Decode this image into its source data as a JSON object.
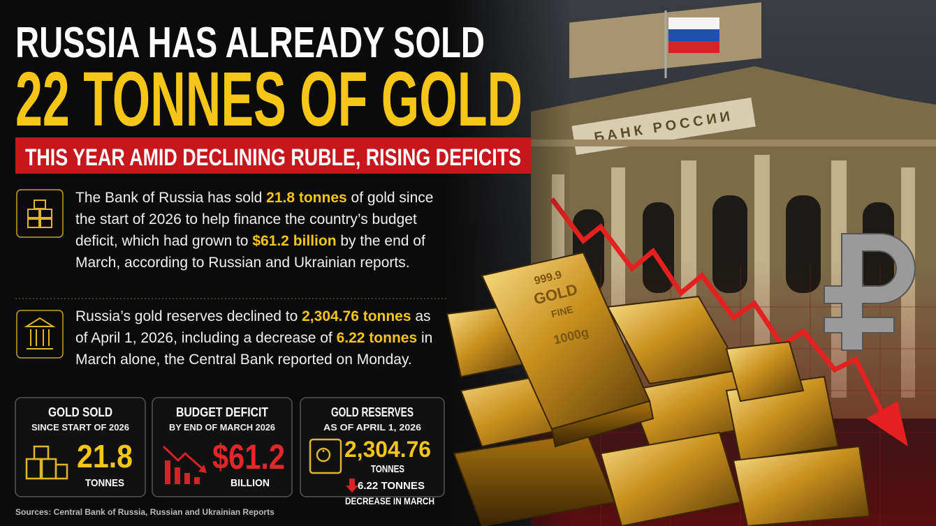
{
  "header": {
    "line1": "RUSSIA HAS ALREADY SOLD",
    "line2": "22 TONNES OF GOLD",
    "banner": "THIS YEAR AMID DECLINING RUBLE, RISING DEFICITS"
  },
  "paragraphs": [
    [
      "The Bank of Russia has sold ",
      "21.8 tonnes",
      " of gold since the start of 2026 to help finance the country’s budget deficit, which had grown to ",
      "$61.2 billion",
      " by the end of March, according to Russian and Ukrainian reports."
    ],
    [
      "Russia’s gold reserves declined to ",
      "2,304.76 tonnes",
      " as of April 1, 2026, including a decrease of ",
      "6.22 tonnes",
      " in March alone, the Central Bank reported on Monday."
    ]
  ],
  "cards": [
    {
      "title": "GOLD SOLD",
      "subtitle": "SINCE START OF 2026",
      "value": "21.8",
      "unit": "TONNES"
    },
    {
      "title": "BUDGET DEFICIT",
      "subtitle": "BY END OF MARCH 2026",
      "value": "$61.2",
      "unit": "BILLION"
    },
    {
      "title": "GOLD RESERVES",
      "subtitle": "AS OF APRIL 1, 2026",
      "value": "2,304.76",
      "unit": "TONNES",
      "change": "6.22 TONNES",
      "change_note": "DECREASE IN MARCH"
    }
  ],
  "image": {
    "bank_sign": "БАНК РОССИИ",
    "bar_engraving": [
      "999.9",
      "GOLD",
      "FINE",
      "1000g"
    ]
  },
  "source": "Sources: Central Bank of Russia, Russian and Ukrainian Reports"
}
